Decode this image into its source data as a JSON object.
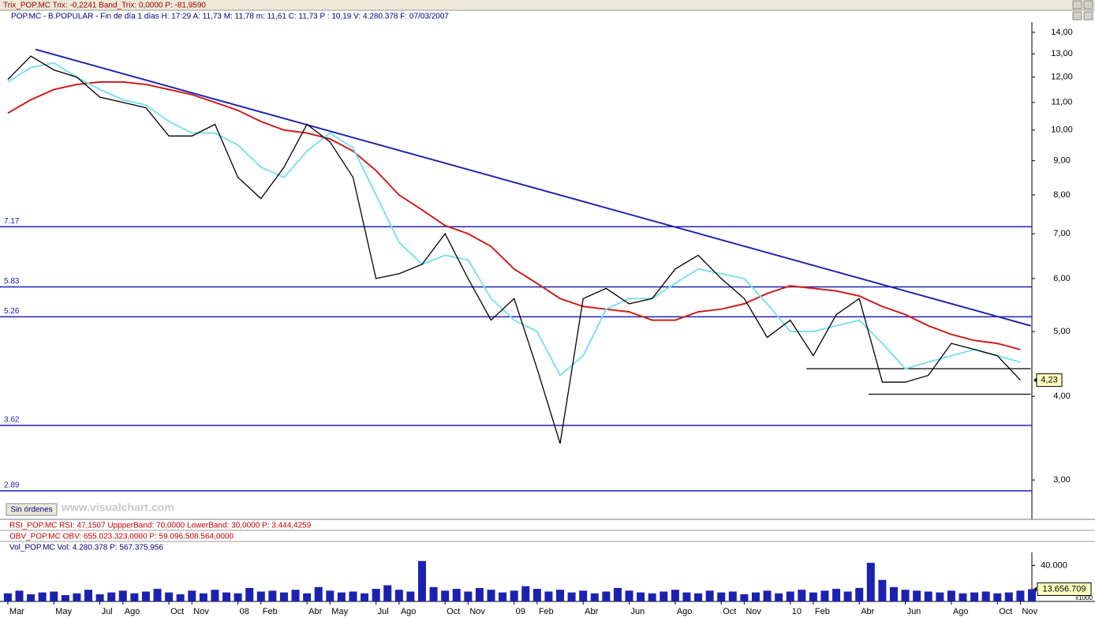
{
  "header": {
    "trix": "Trix_POP.MC  Trix: -0,2241  Band_Trix: 0,0000  P: -81,9590",
    "info": "POP.MC - B.POPULAR - Fin de día 1 días  H: 17:29  A: 11,73  M: 11,78  m: 11,61  C: 11,73  P : 10,19  V: 4.280.378  F: 07/03/2007"
  },
  "button": "Sin órdenes",
  "watermark": "www.visualchart.com",
  "panels": {
    "rsi": "RSI_POP.MC  RSI: 47,1507  UppperBand: 70,0000  LowerBand: 30,0000  P: 3.444,4259",
    "obv": "OBV_POP.MC  OBV: 655.023.323,0000  P: 59.096.508.564,0000",
    "vol": "Vol_POP.MC  Vol: 4.280.378  P: 567.375.956"
  },
  "chart_data": [
    {
      "type": "line",
      "log_scale": true,
      "x": [
        0,
        1,
        2,
        3,
        4,
        5,
        6,
        7,
        8,
        9,
        10,
        11,
        12,
        13,
        14,
        15,
        16,
        17,
        18,
        19,
        20,
        21,
        22,
        23,
        24,
        25,
        26,
        27,
        28,
        29,
        30,
        31,
        32,
        33,
        34,
        35,
        36,
        37,
        38,
        39,
        40,
        41,
        42,
        43,
        44
      ],
      "series": [
        {
          "name": "POP.MC",
          "color": "#000000",
          "values": [
            11.9,
            12.9,
            12.3,
            12.0,
            11.2,
            11.0,
            10.8,
            9.8,
            9.8,
            10.2,
            8.5,
            7.9,
            8.8,
            10.2,
            9.6,
            8.5,
            6.0,
            6.1,
            6.3,
            7.0,
            6.0,
            5.2,
            5.6,
            4.4,
            3.4,
            5.6,
            5.8,
            5.5,
            5.6,
            6.2,
            6.5,
            6.0,
            5.6,
            4.9,
            5.2,
            4.6,
            5.3,
            5.6,
            4.2,
            4.2,
            4.3,
            4.8,
            4.7,
            4.6,
            4.23
          ]
        },
        {
          "name": "MA short",
          "color": "#7fdfef",
          "values": [
            11.8,
            12.4,
            12.6,
            12.0,
            11.5,
            11.1,
            10.9,
            10.3,
            9.9,
            9.9,
            9.5,
            8.8,
            8.5,
            9.3,
            9.9,
            9.4,
            8.0,
            6.8,
            6.3,
            6.5,
            6.4,
            5.6,
            5.2,
            5.0,
            4.3,
            4.6,
            5.4,
            5.6,
            5.6,
            5.9,
            6.2,
            6.1,
            6.0,
            5.5,
            5.0,
            5.0,
            5.1,
            5.2,
            4.8,
            4.4,
            4.5,
            4.6,
            4.7,
            4.6,
            4.5
          ]
        },
        {
          "name": "MA long",
          "color": "#cc1f1f",
          "values": [
            10.6,
            11.1,
            11.5,
            11.7,
            11.8,
            11.8,
            11.7,
            11.5,
            11.3,
            11.0,
            10.7,
            10.3,
            10.0,
            9.9,
            9.7,
            9.3,
            8.7,
            8.0,
            7.6,
            7.2,
            7.0,
            6.7,
            6.2,
            5.9,
            5.6,
            5.45,
            5.4,
            5.35,
            5.2,
            5.2,
            5.35,
            5.4,
            5.5,
            5.7,
            5.85,
            5.8,
            5.75,
            5.65,
            5.45,
            5.3,
            5.1,
            4.95,
            4.85,
            4.8,
            4.7
          ]
        }
      ],
      "trendline": {
        "color": "#1c22b0",
        "x": [
          1.2,
          44.45
        ],
        "values": [
          13.2,
          5.1
        ]
      },
      "levels": [
        7.17,
        5.83,
        5.26,
        3.62,
        2.89
      ],
      "supports": [
        {
          "x": [
            34.7,
            44.45
          ],
          "value": 4.4
        },
        {
          "x": [
            37.4,
            44.45
          ],
          "value": 4.03
        }
      ],
      "level_color": "#1c22b0",
      "last_value": {
        "value": 4.23,
        "label": "4,23"
      },
      "xlim": [
        -0.34,
        44.5
      ],
      "ylim": [
        2.62,
        14.5
      ],
      "yticks": [
        {
          "value": 14,
          "label": "14,00"
        },
        {
          "value": 13,
          "label": "13,00"
        },
        {
          "value": 12,
          "label": "12,00"
        },
        {
          "value": 11,
          "label": "11,00"
        },
        {
          "value": 10,
          "label": "10,00"
        },
        {
          "value": 9,
          "label": "9,00"
        },
        {
          "value": 8,
          "label": "8,00"
        },
        {
          "value": 7,
          "label": "7,00"
        },
        {
          "value": 6,
          "label": "6,00"
        },
        {
          "value": 5,
          "label": "5,00"
        },
        {
          "value": 4,
          "label": "4,00"
        },
        {
          "value": 3,
          "label": "3,00"
        }
      ],
      "xticks": [
        {
          "value": 0,
          "label": "Mar"
        },
        {
          "value": 2,
          "label": "May"
        },
        {
          "value": 4,
          "label": "Jul"
        },
        {
          "value": 5,
          "label": "Ago"
        },
        {
          "value": 7,
          "label": "Oct"
        },
        {
          "value": 8,
          "label": "Nov"
        },
        {
          "value": 10,
          "label": "08"
        },
        {
          "value": 11,
          "label": "Feb"
        },
        {
          "value": 13,
          "label": "Abr"
        },
        {
          "value": 14,
          "label": "May"
        },
        {
          "value": 16,
          "label": "Jul"
        },
        {
          "value": 17,
          "label": "Ago"
        },
        {
          "value": 19,
          "label": "Oct"
        },
        {
          "value": 20,
          "label": "Nov"
        },
        {
          "value": 22,
          "label": "09"
        },
        {
          "value": 23,
          "label": "Feb"
        },
        {
          "value": 25,
          "label": "Abr"
        },
        {
          "value": 27,
          "label": "Jun"
        },
        {
          "value": 29,
          "label": "Ago"
        },
        {
          "value": 31,
          "label": "Oct"
        },
        {
          "value": 32,
          "label": "Nov"
        },
        {
          "value": 34,
          "label": "10"
        },
        {
          "value": 35,
          "label": "Feb"
        },
        {
          "value": 37,
          "label": "Abr"
        },
        {
          "value": 39,
          "label": "Jun"
        },
        {
          "value": 41,
          "label": "Ago"
        },
        {
          "value": 43,
          "label": "Oct"
        },
        {
          "value": 44,
          "label": "Nov"
        }
      ]
    },
    {
      "type": "bar",
      "color": "#1c22b0",
      "x": [
        0,
        0.5,
        1,
        1.5,
        2,
        2.5,
        3,
        3.5,
        4,
        4.5,
        5,
        5.5,
        6,
        6.5,
        7,
        7.5,
        8,
        8.5,
        9,
        9.5,
        10,
        10.5,
        11,
        11.5,
        12,
        12.5,
        13,
        13.5,
        14,
        14.5,
        15,
        15.5,
        16,
        16.5,
        17,
        17.5,
        18,
        18.5,
        19,
        19.5,
        20,
        20.5,
        21,
        21.5,
        22,
        22.5,
        23,
        23.5,
        24,
        24.5,
        25,
        25.5,
        26,
        26.5,
        27,
        27.5,
        28,
        28.5,
        29,
        29.5,
        30,
        30.5,
        31,
        31.5,
        32,
        32.5,
        33,
        33.5,
        34,
        34.5,
        35,
        35.5,
        36,
        36.5,
        37,
        37.5,
        38,
        38.5,
        39,
        39.5,
        40,
        40.5,
        41,
        41.5,
        42,
        42.5,
        43,
        43.5,
        44,
        44.5
      ],
      "values": [
        9000,
        12000,
        8000,
        10000,
        11000,
        7000,
        9000,
        13000,
        8000,
        10000,
        12000,
        9000,
        11000,
        14000,
        10000,
        8000,
        12000,
        9000,
        13000,
        10000,
        9000,
        15000,
        11000,
        12000,
        10000,
        13000,
        9000,
        16000,
        12000,
        10000,
        11000,
        9000,
        14000,
        18000,
        13000,
        11000,
        45000,
        16000,
        12000,
        14000,
        11000,
        15000,
        13000,
        10000,
        12000,
        17000,
        14000,
        11000,
        13000,
        10000,
        12000,
        9000,
        11000,
        15000,
        12000,
        10000,
        9000,
        11000,
        13000,
        10000,
        9000,
        12000,
        10000,
        11000,
        8000,
        10000,
        12000,
        9000,
        11000,
        13000,
        10000,
        12000,
        14000,
        11000,
        15000,
        43000,
        24000,
        16000,
        13000,
        12000,
        11000,
        10000,
        12000,
        9000,
        10000,
        11000,
        9000,
        10000,
        12000,
        13656.709
      ],
      "xlim": [
        -0.34,
        44.5
      ],
      "ylim": [
        0,
        54500
      ],
      "yticks": [
        {
          "value": 40000,
          "label": "40.000"
        }
      ],
      "last_value": {
        "value": 13656.709,
        "label": "13.656.709"
      },
      "unit": "x1000"
    }
  ]
}
